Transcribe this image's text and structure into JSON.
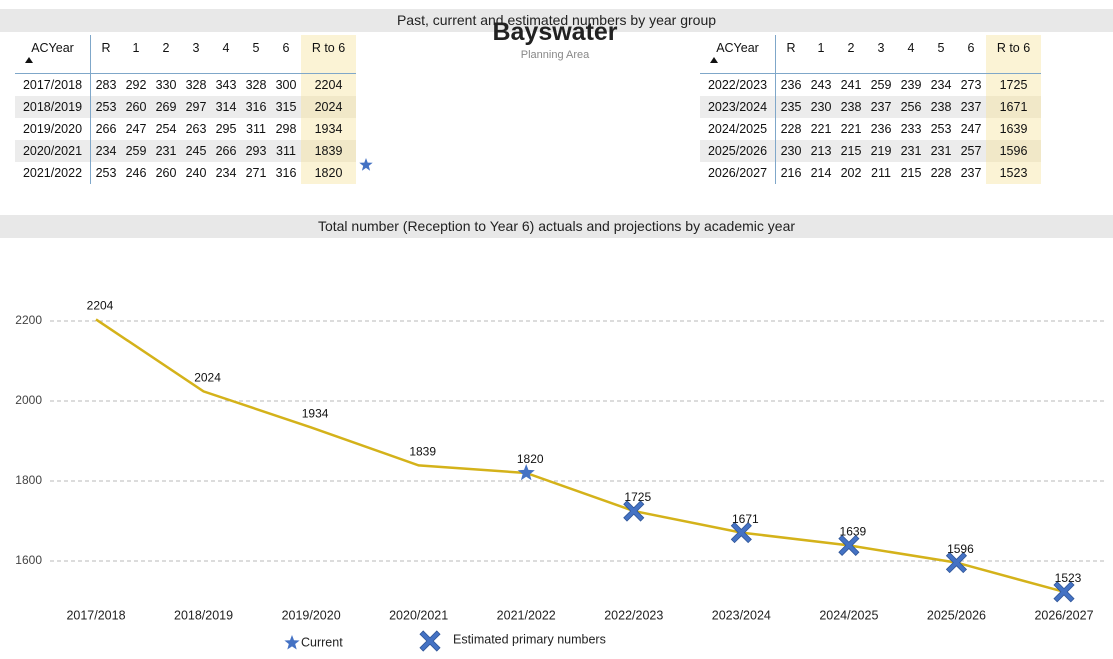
{
  "header": {
    "title": "Past, current and estimated numbers by year group"
  },
  "area": {
    "name": "Bayswater",
    "subtitle": "Planning Area"
  },
  "tables": {
    "left": {
      "columns": [
        "ACYear",
        "R",
        "1",
        "2",
        "3",
        "4",
        "5",
        "6",
        "R to 6"
      ],
      "rows": [
        [
          "2017/2018",
          283,
          292,
          330,
          328,
          343,
          328,
          300,
          2204
        ],
        [
          "2018/2019",
          253,
          260,
          269,
          297,
          314,
          316,
          315,
          2024
        ],
        [
          "2019/2020",
          266,
          247,
          254,
          263,
          295,
          311,
          298,
          1934
        ],
        [
          "2020/2021",
          234,
          259,
          231,
          245,
          266,
          293,
          311,
          1839
        ],
        [
          "2021/2022",
          253,
          246,
          260,
          240,
          234,
          271,
          316,
          1820
        ]
      ]
    },
    "right": {
      "columns": [
        "ACYear",
        "R",
        "1",
        "2",
        "3",
        "4",
        "5",
        "6",
        "R to 6"
      ],
      "rows": [
        [
          "2022/2023",
          236,
          243,
          241,
          259,
          239,
          234,
          273,
          1725
        ],
        [
          "2023/2024",
          235,
          230,
          238,
          237,
          256,
          238,
          237,
          1671
        ],
        [
          "2024/2025",
          228,
          221,
          221,
          236,
          233,
          253,
          247,
          1639
        ],
        [
          "2025/2026",
          230,
          213,
          215,
          219,
          231,
          231,
          257,
          1596
        ],
        [
          "2026/2027",
          216,
          214,
          202,
          211,
          215,
          228,
          237,
          1523
        ]
      ]
    }
  },
  "chart_data": {
    "type": "line",
    "title": "Total number (Reception to Year 6) actuals and projections by academic year",
    "categories": [
      "2017/2018",
      "2018/2019",
      "2019/2020",
      "2020/2021",
      "2021/2022",
      "2022/2023",
      "2023/2024",
      "2024/2025",
      "2025/2026",
      "2026/2027"
    ],
    "series": [
      {
        "name": "R to 6",
        "color": "#d4b21a",
        "values": [
          2204,
          2024,
          1934,
          1839,
          1820,
          1725,
          1671,
          1639,
          1596,
          1523
        ],
        "markers": [
          null,
          null,
          null,
          null,
          "star",
          "cross",
          "cross",
          "cross",
          "cross",
          "cross"
        ]
      }
    ],
    "marker_color": "#4472c4",
    "legend": [
      {
        "label": "Current",
        "marker": "star"
      },
      {
        "label": "Estimated primary numbers",
        "marker": "cross"
      }
    ],
    "ylim": [
      1500,
      2250
    ],
    "yticks": [
      1600,
      1800,
      2000,
      2200
    ],
    "grid": true
  }
}
